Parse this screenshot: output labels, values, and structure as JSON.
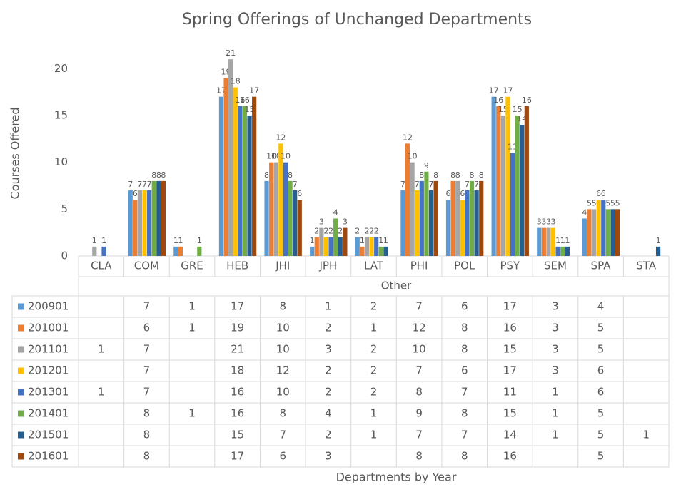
{
  "chart_data": {
    "type": "bar",
    "title": "Spring Offerings of Unchanged Departments",
    "y_label": "Courses Offered",
    "x_label": "Departments by Year",
    "category_group": "Other",
    "categories": [
      "CLA",
      "COM",
      "GRE",
      "HEB",
      "JHI",
      "JPH",
      "LAT",
      "PHI",
      "POL",
      "PSY",
      "SEM",
      "SPA",
      "STA"
    ],
    "series": [
      {
        "name": "200901",
        "color": "#5b9bd5",
        "values": [
          null,
          7,
          1,
          17,
          8,
          1,
          2,
          7,
          6,
          17,
          3,
          4,
          null
        ]
      },
      {
        "name": "201001",
        "color": "#ed7d31",
        "values": [
          null,
          6,
          1,
          19,
          10,
          2,
          1,
          12,
          8,
          16,
          3,
          5,
          null
        ]
      },
      {
        "name": "201101",
        "color": "#a5a5a5",
        "values": [
          1,
          7,
          null,
          21,
          10,
          3,
          2,
          10,
          8,
          15,
          3,
          5,
          null
        ]
      },
      {
        "name": "201201",
        "color": "#ffc000",
        "values": [
          null,
          7,
          null,
          18,
          12,
          2,
          2,
          7,
          6,
          17,
          3,
          6,
          null
        ]
      },
      {
        "name": "201301",
        "color": "#4472c4",
        "values": [
          1,
          7,
          null,
          16,
          10,
          2,
          2,
          8,
          7,
          11,
          1,
          6,
          null
        ]
      },
      {
        "name": "201401",
        "color": "#70ad47",
        "values": [
          null,
          8,
          1,
          16,
          8,
          4,
          1,
          9,
          8,
          15,
          1,
          5,
          null
        ]
      },
      {
        "name": "201501",
        "color": "#255e91",
        "values": [
          null,
          8,
          null,
          15,
          7,
          2,
          1,
          7,
          7,
          14,
          1,
          5,
          1
        ]
      },
      {
        "name": "201601",
        "color": "#9e480e",
        "values": [
          null,
          8,
          null,
          17,
          6,
          3,
          null,
          8,
          8,
          16,
          null,
          5,
          null
        ]
      }
    ],
    "ylim": [
      0,
      22
    ],
    "yticks": [
      0,
      5,
      10,
      15,
      20
    ],
    "grid": false,
    "legend": "table"
  }
}
